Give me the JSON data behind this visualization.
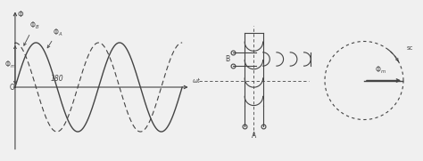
{
  "bg_color": "#f0f0f0",
  "line_color": "#444444",
  "phi_m_label": "$\\Phi_m$",
  "phi_a_label": "$\\Phi_A$",
  "phi_b_label": "$\\Phi_B$",
  "phi_label": "$\\Phi$",
  "wt_label": "$\\omega t$",
  "label_180": "180",
  "label_B": "B",
  "label_A": "A",
  "label_sc": "sc",
  "label_O": "O",
  "panel1_xlim": [
    -0.5,
    13.5
  ],
  "panel1_ylim": [
    -1.5,
    1.8
  ]
}
